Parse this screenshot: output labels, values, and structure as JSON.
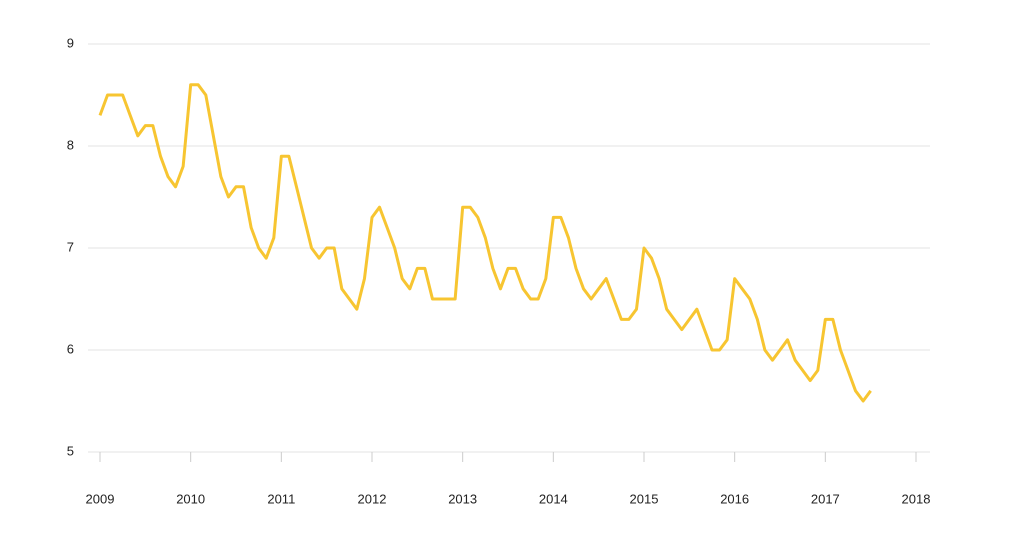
{
  "chart_data": {
    "type": "line",
    "x": [
      2009.0,
      2009.083,
      2009.167,
      2009.25,
      2009.333,
      2009.417,
      2009.5,
      2009.583,
      2009.667,
      2009.75,
      2009.833,
      2009.917,
      2010.0,
      2010.083,
      2010.167,
      2010.25,
      2010.333,
      2010.417,
      2010.5,
      2010.583,
      2010.667,
      2010.75,
      2010.833,
      2010.917,
      2011.0,
      2011.083,
      2011.167,
      2011.25,
      2011.333,
      2011.417,
      2011.5,
      2011.583,
      2011.667,
      2011.75,
      2011.833,
      2011.917,
      2012.0,
      2012.083,
      2012.167,
      2012.25,
      2012.333,
      2012.417,
      2012.5,
      2012.583,
      2012.667,
      2012.75,
      2012.833,
      2012.917,
      2013.0,
      2013.083,
      2013.167,
      2013.25,
      2013.333,
      2013.417,
      2013.5,
      2013.583,
      2013.667,
      2013.75,
      2013.833,
      2013.917,
      2014.0,
      2014.083,
      2014.167,
      2014.25,
      2014.333,
      2014.417,
      2014.5,
      2014.583,
      2014.667,
      2014.75,
      2014.833,
      2014.917,
      2015.0,
      2015.083,
      2015.167,
      2015.25,
      2015.333,
      2015.417,
      2015.5,
      2015.583,
      2015.667,
      2015.75,
      2015.833,
      2015.917,
      2016.0,
      2016.083,
      2016.167,
      2016.25,
      2016.333,
      2016.417,
      2016.5,
      2016.583,
      2016.667,
      2016.75,
      2016.833,
      2016.917,
      2017.0,
      2017.083,
      2017.167,
      2017.25,
      2017.333,
      2017.417,
      2017.5
    ],
    "series": [
      {
        "color": "#f7c531",
        "values": [
          8.3,
          8.5,
          8.5,
          8.5,
          8.3,
          8.1,
          8.2,
          8.2,
          7.9,
          7.7,
          7.6,
          7.8,
          8.6,
          8.6,
          8.5,
          8.1,
          7.7,
          7.5,
          7.6,
          7.6,
          7.2,
          7.0,
          6.9,
          7.1,
          7.9,
          7.9,
          7.6,
          7.3,
          7.0,
          6.9,
          7.0,
          7.0,
          6.6,
          6.5,
          6.4,
          6.7,
          7.3,
          7.4,
          7.2,
          7.0,
          6.7,
          6.6,
          6.8,
          6.8,
          6.5,
          6.5,
          6.5,
          6.5,
          7.4,
          7.4,
          7.3,
          7.1,
          6.8,
          6.6,
          6.8,
          6.8,
          6.6,
          6.5,
          6.5,
          6.7,
          7.3,
          7.3,
          7.1,
          6.8,
          6.6,
          6.5,
          6.6,
          6.7,
          6.5,
          6.3,
          6.3,
          6.4,
          7.0,
          6.9,
          6.7,
          6.4,
          6.3,
          6.2,
          6.3,
          6.4,
          6.2,
          6.0,
          6.0,
          6.1,
          6.7,
          6.6,
          6.5,
          6.3,
          6.0,
          5.9,
          6.0,
          6.1,
          5.9,
          5.8,
          5.7,
          5.8,
          6.3,
          6.3,
          6.0,
          5.8,
          5.6,
          5.5,
          5.6
        ]
      }
    ],
    "xlim": [
      2009,
      2018
    ],
    "xticks": [
      2009,
      2010,
      2011,
      2012,
      2013,
      2014,
      2015,
      2016,
      2017,
      2018
    ],
    "ylim": [
      5,
      9
    ],
    "yticks": [
      5,
      6,
      7,
      8,
      9
    ],
    "grid": true
  }
}
